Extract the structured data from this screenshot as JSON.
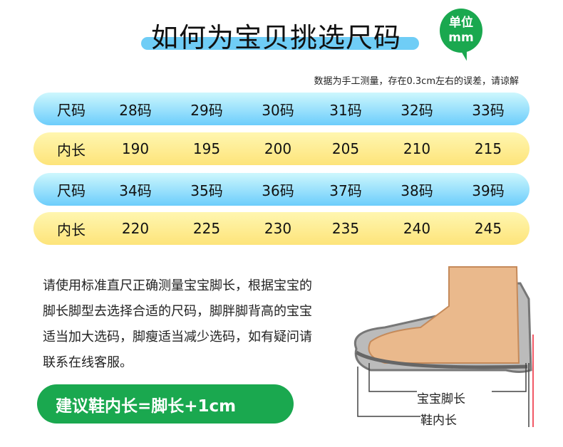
{
  "header": {
    "title": "如何为宝贝挑选尺码",
    "unit_badge": {
      "line1": "单位",
      "line2": "mm"
    },
    "note": "数据为手工测量，存在0.3cm左右的误差，请谅解"
  },
  "table": {
    "rows": [
      {
        "label": "尺码",
        "values": [
          "28码",
          "29码",
          "30码",
          "31码",
          "32码",
          "33码"
        ],
        "color": "blue"
      },
      {
        "label": "内长",
        "values": [
          "190",
          "195",
          "200",
          "205",
          "210",
          "215"
        ],
        "color": "yellow"
      },
      {
        "label": "尺码",
        "values": [
          "34码",
          "35码",
          "36码",
          "37码",
          "38码",
          "39码"
        ],
        "color": "blue"
      },
      {
        "label": "内长",
        "values": [
          "220",
          "225",
          "230",
          "235",
          "240",
          "245"
        ],
        "color": "yellow"
      }
    ]
  },
  "description": "请使用标准直尺正确测量宝宝脚长，根据宝宝的脚长脚型去选择合适的尺码，脚胖脚背高的宝宝适当加大选码，脚瘦适当减少选码，如有疑问请联系在线客服。",
  "formula": "建议鞋内长=脚长+1cm",
  "diagram": {
    "foot_length": "宝宝脚长",
    "shoe_inner_length": "鞋内长"
  }
}
